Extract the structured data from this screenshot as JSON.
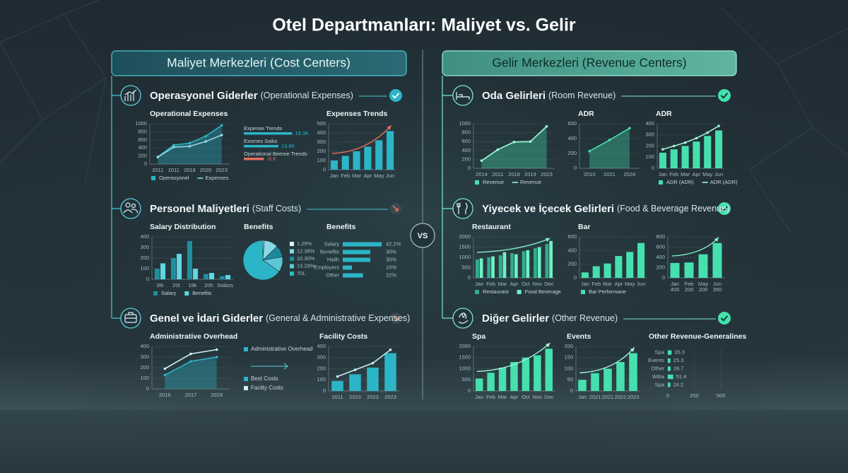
{
  "title": "Otel Departmanları: Maliyet vs. Gelir",
  "vs": "VS",
  "panels": [
    {
      "header": "Maliyet Merkezleri (Cost Centers)",
      "groups": [
        {
          "title": "Operasyonel Giderler",
          "subtitle": "(Operational Expenses)"
        },
        {
          "title": "Personel Maliyetleri",
          "subtitle": "(Staff Costs)"
        },
        {
          "title": "Genel ve İdari Giderler",
          "subtitle": "(General & Administrative Expenses)"
        }
      ]
    },
    {
      "header": "Gelir Merkezleri (Revenue Centers)",
      "groups": [
        {
          "title": "Oda Gelirleri",
          "subtitle": "(Room Revenue)"
        },
        {
          "title": "Yiyecek ve İçecek Gelirleri",
          "subtitle": "(Food & Beverage Revenue)"
        },
        {
          "title": "Diğer Gelirler",
          "subtitle": "(Other Revenue)"
        }
      ]
    }
  ],
  "chart_data": [
    {
      "type": "line",
      "title": "Operational Expenses",
      "categories": [
        "2011",
        "2011",
        "2018",
        "2020",
        "2023"
      ],
      "ylim": [
        0,
        1000
      ],
      "yticks": [
        0,
        200,
        400,
        600,
        800,
        1000
      ],
      "series": [
        {
          "name": "Operasyonel",
          "kind": "area",
          "color": "#2cb5c6",
          "values": [
            180,
            470,
            520,
            690,
            960
          ]
        },
        {
          "name": "Expenses",
          "kind": "line",
          "color": "#8fd8e0",
          "values": [
            170,
            420,
            440,
            560,
            720
          ]
        }
      ],
      "legend": "bottom"
    },
    {
      "type": "hbar",
      "label_position": "above",
      "categories": [
        "Expense Trends",
        "Exomes Saiks",
        "Operational Beeme Trends"
      ],
      "values": [
        19.3,
        13.8,
        -8
      ],
      "value_labels": [
        "19.3K",
        "13.8K",
        "-8.K"
      ],
      "colors": [
        "#2cb5c6",
        "#2cb5c6",
        "#e0705a"
      ]
    },
    {
      "type": "bar",
      "title": "Expenses Trends",
      "categories": [
        "Jan",
        "Feb",
        "Mar",
        "Apr",
        "May",
        "Jun"
      ],
      "values": [
        100,
        150,
        200,
        250,
        320,
        420
      ],
      "color": "#2cb5c6",
      "ylim": [
        0,
        500
      ],
      "yticks": [
        0,
        100,
        200,
        300,
        400,
        500
      ],
      "trend": "#e0705a"
    },
    {
      "type": "bar",
      "title": "Salary Distribution",
      "categories": [
        "3th",
        "20t",
        "18k",
        "20h",
        "Stabzs"
      ],
      "ylim": [
        0,
        400
      ],
      "yticks": [
        0,
        100,
        200,
        300,
        400
      ],
      "series": [
        {
          "name": "Salary",
          "kind": "bar",
          "color": "#1f8fa0",
          "values": [
            100,
            200,
            360,
            50,
            30
          ]
        },
        {
          "name": "Benefits",
          "kind": "bar",
          "color": "#5fd6e0",
          "values": [
            150,
            240,
            100,
            60,
            40
          ]
        }
      ],
      "legend": "bottom"
    },
    {
      "type": "pie",
      "title": "Benefits",
      "values": [
        1.29,
        12.38,
        10.3,
        13.29,
        70
      ],
      "value_labels": [
        "1.29%",
        "12.38%",
        "10.30%",
        "13.29%",
        "70L"
      ],
      "colors": [
        "#d8f4f6",
        "#8ad8e2",
        "#1c8a9c",
        "#5cc6d6",
        "#2cb5c6"
      ]
    },
    {
      "type": "hbar",
      "title": "Benefits",
      "categories": [
        "Salary",
        "Benefits",
        "Hailh",
        "Employers",
        "Other"
      ],
      "values": [
        42.2,
        30,
        30,
        10,
        22
      ],
      "value_labels": [
        "42.2%",
        "30%",
        "30%",
        "10%",
        "22%"
      ],
      "color": "#2cb5c6"
    },
    {
      "type": "line",
      "title": "Administrative Overhead",
      "categories": [
        "2016",
        "2017",
        "2029"
      ],
      "ylim": [
        0,
        400
      ],
      "yticks": [
        0,
        100,
        200,
        300,
        400
      ],
      "series": [
        {
          "name": "Best Costs",
          "kind": "area",
          "color": "#2cb5c6",
          "values": [
            130,
            260,
            300
          ]
        },
        {
          "name": "Facilty Costs",
          "kind": "line",
          "color": "#c8eef2",
          "values": [
            190,
            330,
            370
          ]
        }
      ],
      "legend": "right",
      "legend_note": "Administrative Overhead"
    },
    {
      "type": "bar",
      "title": "Facility Costs",
      "categories": [
        "2011",
        "2023",
        "2023",
        "2023"
      ],
      "ylim": [
        0,
        400
      ],
      "yticks": [
        0,
        100,
        200,
        300,
        400
      ],
      "series": [
        {
          "kind": "bar",
          "color": "#2cb5c6",
          "values": [
            90,
            150,
            210,
            340
          ]
        },
        {
          "kind": "line",
          "color": "#c8eef2",
          "values": [
            130,
            190,
            250,
            370
          ]
        }
      ]
    },
    {
      "type": "line",
      "categories": [
        "2014",
        "2011",
        "2018",
        "2019",
        "2023"
      ],
      "ylim": [
        0,
        1000
      ],
      "yticks": [
        0,
        200,
        400,
        600,
        800,
        1000
      ],
      "series": [
        {
          "name": "Revenue",
          "kind": "area",
          "color": "#45e0ad",
          "values": [
            170,
            420,
            590,
            600,
            940
          ]
        },
        {
          "name": "Revenue",
          "kind": "line",
          "color": "#9ff5d5",
          "values": [
            170,
            420,
            590,
            600,
            940
          ]
        }
      ],
      "legend": "bottom"
    },
    {
      "type": "line",
      "title": "ADR",
      "categories": [
        "2010",
        "2021",
        "2024"
      ],
      "ylim": [
        0,
        600
      ],
      "yticks": [
        0,
        200,
        400,
        600
      ],
      "series": [
        {
          "kind": "area",
          "color": "#45e0ad",
          "values": [
            230,
            380,
            540
          ]
        }
      ]
    },
    {
      "type": "bar",
      "title": "ADR",
      "categories": [
        "Jan",
        "Feb",
        "Mar",
        "Apr",
        "May",
        "Jun"
      ],
      "ylim": [
        0,
        400
      ],
      "yticks": [
        0,
        100,
        200,
        300,
        400
      ],
      "series": [
        {
          "name": "ADR (ADR)",
          "kind": "bar",
          "color": "#45e0ad",
          "values": [
            140,
            170,
            200,
            240,
            290,
            340
          ]
        },
        {
          "name": "ADR (ADR)",
          "kind": "line",
          "color": "#9ff5d5",
          "values": [
            170,
            200,
            230,
            270,
            320,
            380
          ]
        }
      ],
      "legend": "bottom"
    },
    {
      "type": "bar",
      "title": "Restaurant",
      "categories": [
        "Jan",
        "Feb",
        "Mar",
        "Apr",
        "Oct",
        "Nov",
        "Dec"
      ],
      "ylim": [
        0,
        2000
      ],
      "yticks": [
        0,
        500,
        1000,
        1500,
        2000
      ],
      "series": [
        {
          "name": "Restaurant",
          "kind": "bar",
          "color": "#2fae8e",
          "values": [
            900,
            1000,
            1100,
            1200,
            1300,
            1450,
            1650
          ]
        },
        {
          "name": "Food Beverage",
          "kind": "bar",
          "color": "#6ff0c4",
          "values": [
            950,
            1050,
            1250,
            1150,
            1350,
            1500,
            1800
          ]
        }
      ],
      "legend": "bottom",
      "trend": "#7ff0c8"
    },
    {
      "type": "bar",
      "title": "Bar",
      "categories": [
        "Jan",
        "Feb",
        "Mar",
        "Apr",
        "May",
        "Jun"
      ],
      "ylim": [
        0,
        600
      ],
      "yticks": [
        0,
        200,
        400,
        600
      ],
      "series": [
        {
          "name": "Bar Performane",
          "kind": "bar",
          "color": "#45e0ad",
          "values": [
            80,
            170,
            210,
            320,
            380,
            510
          ]
        }
      ],
      "legend": "bottom"
    },
    {
      "type": "bar",
      "categories": [
        "Jan",
        "Feb",
        "May",
        "Jun"
      ],
      "sublabels": [
        "400",
        "200",
        "200",
        "350"
      ],
      "values": [
        290,
        300,
        460,
        680
      ],
      "color": "#45e0ad",
      "ylim": [
        0,
        800
      ],
      "yticks": [
        0,
        200,
        400,
        600,
        800
      ],
      "trend": "#7ff0c8"
    },
    {
      "type": "bar",
      "title": "Spa",
      "categories": [
        "Jan",
        "Feb",
        "Mar",
        "Apr",
        "Oct",
        "Nov",
        "Dec"
      ],
      "values": [
        560,
        820,
        1050,
        1300,
        1500,
        1600,
        1900
      ],
      "color": "#45e0ad",
      "ylim": [
        0,
        2000
      ],
      "yticks": [
        0,
        500,
        1000,
        1500,
        2000
      ],
      "trend": "#9ff5d5"
    },
    {
      "type": "bar",
      "title": "Events",
      "categories": [
        "Jan",
        "2021",
        "2021",
        "2022",
        "2023"
      ],
      "values": [
        50,
        80,
        100,
        130,
        170
      ],
      "color": "#45e0ad",
      "ylim": [
        0,
        200
      ],
      "yticks": [
        0,
        50,
        100,
        150,
        200
      ],
      "trend": "#9ff5d5"
    },
    {
      "type": "hbar",
      "title": "Other Revenue-Generalines",
      "categories": [
        "Spa",
        "Events",
        "Other",
        "Wiba",
        "Spa"
      ],
      "values": [
        35.3,
        25.3,
        26.7,
        51.4,
        24.2
      ],
      "color": "#45e0ad",
      "xlim": [
        0,
        500
      ],
      "xticks": [
        0,
        250,
        500
      ]
    }
  ]
}
